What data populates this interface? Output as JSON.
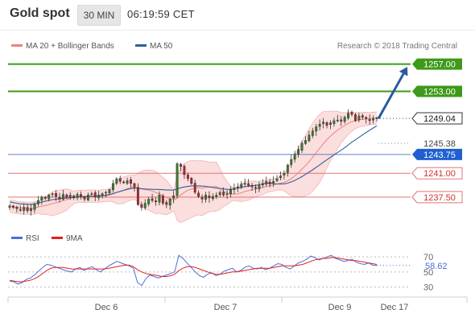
{
  "header": {
    "title": "Gold spot",
    "timeframe": "30 MIN",
    "time": "06:19:59 CET"
  },
  "legend": {
    "ma20_label": "MA 20 + Bollinger Bands",
    "ma50_label": "MA 50",
    "credit": "Research © 2018 Trading Central",
    "ma20_color": "#f08080",
    "ma50_color": "#2f5f9a"
  },
  "colors": {
    "green_level": "#3d9a1a",
    "red_level": "#e57373",
    "blue_level": "#5a7fc0",
    "price_box": "#333333",
    "current_tag": "#1f5fd1",
    "arrow": "#2a5aa0",
    "band_fill": "#fbdede",
    "rsi_line": "#4a6fd8",
    "rsi_ma_line": "#e02020"
  },
  "chart_data": [
    {
      "type": "candlestick",
      "instrument": "Gold spot",
      "y_range": [
        1234,
        1260
      ],
      "resistance_levels": [
        {
          "value": "1257.00",
          "style": "green"
        },
        {
          "value": "1253.00",
          "style": "green"
        }
      ],
      "current_price": "1249.04",
      "indicator_labels": [
        {
          "value": "1245.38",
          "style": "plain"
        },
        {
          "value": "1243.75",
          "style": "blue-tag"
        }
      ],
      "support_levels": [
        {
          "value": "1241.00",
          "style": "red"
        },
        {
          "value": "1237.50",
          "style": "red"
        }
      ],
      "projection": {
        "from": 1249.0,
        "to": 1256.6,
        "direction": "up"
      },
      "closes": [
        1236.2,
        1236.0,
        1235.8,
        1235.6,
        1236.0,
        1235.5,
        1235.8,
        1236.4,
        1237.0,
        1237.5,
        1237.3,
        1237.8,
        1238.0,
        1237.6,
        1237.2,
        1237.9,
        1237.5,
        1237.8,
        1237.4,
        1237.9,
        1237.6,
        1237.2,
        1237.8,
        1238.0,
        1237.5,
        1237.8,
        1238.0,
        1238.2,
        1238.6,
        1239.5,
        1240.2,
        1239.8,
        1239.6,
        1239.9,
        1239.5,
        1239.0,
        1236.4,
        1236.0,
        1236.6,
        1237.2,
        1237.0,
        1236.8,
        1237.8,
        1236.6,
        1236.4,
        1237.2,
        1237.7,
        1242.4,
        1242.0,
        1240.8,
        1240.2,
        1239.5,
        1238.2,
        1237.6,
        1237.2,
        1237.8,
        1237.4,
        1237.6,
        1237.8,
        1238.2,
        1237.8,
        1238.0,
        1238.6,
        1238.8,
        1239.0,
        1239.4,
        1239.5,
        1239.2,
        1239.0,
        1238.8,
        1239.2,
        1239.5,
        1239.8,
        1239.4,
        1239.8,
        1240.2,
        1240.6,
        1241.0,
        1242.2,
        1243.0,
        1243.8,
        1244.5,
        1245.4,
        1245.8,
        1246.6,
        1247.2,
        1247.8,
        1248.2,
        1248.5,
        1248.0,
        1248.4,
        1248.7,
        1248.8,
        1248.6,
        1249.2,
        1249.8,
        1249.6,
        1248.7,
        1249.4,
        1249.2,
        1249.0,
        1248.7,
        1249.0,
        1249.04
      ],
      "x_tick_labels": [
        "Dec 6",
        "Dec 7",
        "Dec 9",
        "Dec 17"
      ]
    },
    {
      "type": "line",
      "indicator": "RSI",
      "legend": [
        {
          "name": "RSI",
          "color": "#4a6fd8"
        },
        {
          "name": "9MA",
          "color": "#e02020"
        }
      ],
      "y_range": [
        20,
        80
      ],
      "y_ticks": [
        "70",
        "50",
        "30"
      ],
      "current_value": "58.62",
      "rsi": [
        38,
        37,
        34,
        36,
        40,
        42,
        46,
        51,
        56,
        60,
        59,
        57,
        55,
        53,
        51,
        50,
        54,
        56,
        52,
        55,
        57,
        53,
        50,
        54,
        58,
        61,
        64,
        62,
        60,
        58,
        55,
        36,
        32,
        41,
        46,
        44,
        42,
        44,
        46,
        48,
        50,
        72,
        68,
        62,
        56,
        50,
        45,
        43,
        47,
        49,
        45,
        47,
        51,
        53,
        55,
        50,
        52,
        56,
        58,
        55,
        54,
        56,
        53,
        55,
        58,
        61,
        60,
        56,
        54,
        58,
        62,
        64,
        67,
        71,
        69,
        66,
        68,
        70,
        72,
        68,
        66,
        64,
        65,
        67,
        63,
        61,
        60,
        62,
        59,
        58.62
      ],
      "ma9": [
        39,
        38,
        37,
        37,
        38,
        39,
        41,
        44,
        48,
        52,
        55,
        56,
        56,
        56,
        55,
        54,
        54,
        54,
        54,
        54,
        54,
        54,
        54,
        54,
        55,
        56,
        57,
        58,
        59,
        59,
        57,
        53,
        50,
        48,
        47,
        46,
        45,
        44,
        44,
        45,
        47,
        52,
        55,
        57,
        57,
        56,
        54,
        52,
        50,
        48,
        47,
        47,
        48,
        49,
        50,
        50,
        51,
        52,
        53,
        54,
        55,
        55,
        55,
        55,
        56,
        57,
        58,
        58,
        58,
        58,
        59,
        60,
        62,
        64,
        66,
        67,
        68,
        68,
        69,
        69,
        68,
        67,
        66,
        65,
        65,
        64,
        63,
        62,
        61,
        60
      ]
    }
  ]
}
